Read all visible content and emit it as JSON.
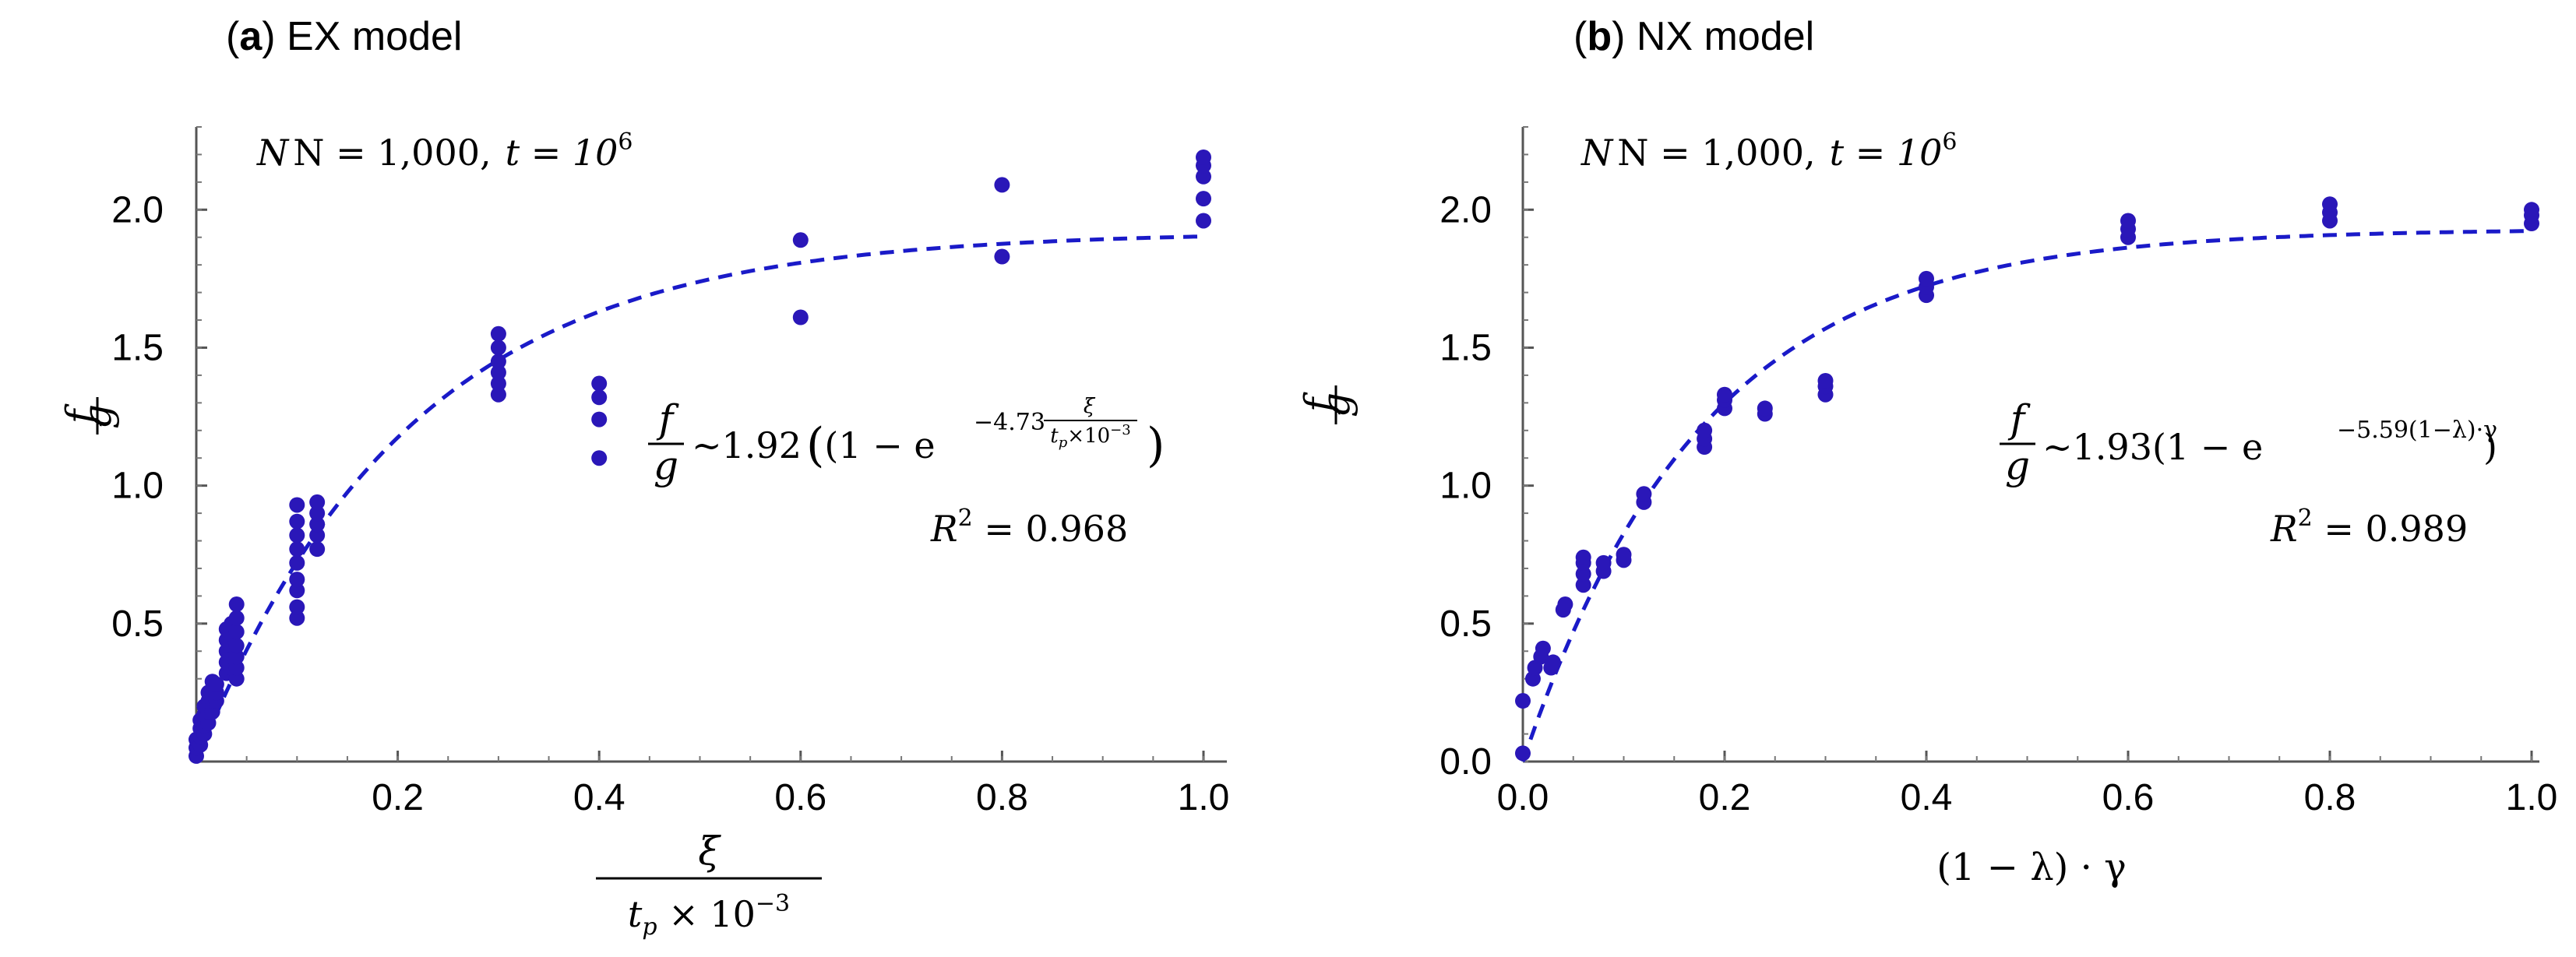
{
  "colors": {
    "points": "#2a17b8",
    "fit": "#1a1ac8"
  },
  "panels": [
    {
      "id": "a",
      "letter": "a",
      "title": " EX model",
      "annotation": {
        "N": "N = 1,000,",
        "t": "t = 10",
        "t_exp": "6"
      },
      "ylabel": {
        "num": "f",
        "den": "g"
      },
      "xlabel": {
        "num": "ξ",
        "den_base": "t",
        "den_sub": "p",
        "den_rest": " × 10",
        "den_exp": "−3"
      },
      "equation": {
        "lhs_num": "f",
        "lhs_den": "g",
        "rest": "~1.92",
        "open": "(1 − e",
        "exp_coef": "−4.73",
        "exp_frac_num": "ξ",
        "exp_frac_den": "t",
        "exp_frac_den_sub": "p",
        "exp_frac_den_rest": "×10",
        "exp_frac_den_exp": "−3",
        "close": ")"
      },
      "r2": {
        "label": "R",
        "exp": "2",
        "value": " = 0.968"
      }
    },
    {
      "id": "b",
      "letter": "b",
      "title": " NX model",
      "annotation": {
        "N": "N = 1,000,",
        "t": "t = 10",
        "t_exp": "6"
      },
      "ylabel": {
        "num": "f",
        "den": "g"
      },
      "xlabel": {
        "text": "(1 − λ) · γ"
      },
      "equation": {
        "lhs_num": "f",
        "lhs_den": "g",
        "rest": "~1.93",
        "open": "(1 − e",
        "exp": "−5.59(1−λ)·γ",
        "close": ")"
      },
      "r2": {
        "label": "R",
        "exp": "2",
        "value": " = 0.989"
      }
    }
  ],
  "chart_data": [
    {
      "type": "scatter",
      "title": "(a) EX model",
      "xlabel": "ξ / (t_p × 10^-3)",
      "ylabel": "f / g",
      "xlim": [
        0,
        1.0
      ],
      "ylim": [
        0,
        2.3
      ],
      "xticks": [
        {
          "value": 0.2,
          "label": "0.2"
        },
        {
          "value": 0.4,
          "label": "0.4"
        },
        {
          "value": 0.6,
          "label": "0.6"
        },
        {
          "value": 0.8,
          "label": "0.8"
        },
        {
          "value": 1.0,
          "label": "1.0"
        }
      ],
      "yticks": [
        {
          "value": 0.5,
          "label": "0.5"
        },
        {
          "value": 1.0,
          "label": "1.0"
        },
        {
          "value": 1.5,
          "label": "1.5"
        },
        {
          "value": 2.0,
          "label": "2.0"
        }
      ],
      "fit": {
        "a": 1.92,
        "b": 4.73,
        "label": "f/g ~ 1.92(1 − e^(−4.73 ξ/(t_p×10^-3)))"
      },
      "points": [
        [
          0.0,
          0.02
        ],
        [
          0.0,
          0.05
        ],
        [
          0.0,
          0.08
        ],
        [
          0.004,
          0.06
        ],
        [
          0.004,
          0.09
        ],
        [
          0.004,
          0.12
        ],
        [
          0.004,
          0.15
        ],
        [
          0.008,
          0.1
        ],
        [
          0.008,
          0.13
        ],
        [
          0.008,
          0.17
        ],
        [
          0.008,
          0.2
        ],
        [
          0.012,
          0.14
        ],
        [
          0.012,
          0.18
        ],
        [
          0.012,
          0.22
        ],
        [
          0.012,
          0.25
        ],
        [
          0.016,
          0.18
        ],
        [
          0.016,
          0.22
        ],
        [
          0.016,
          0.26
        ],
        [
          0.016,
          0.29
        ],
        [
          0.02,
          0.22
        ],
        [
          0.02,
          0.25
        ],
        [
          0.02,
          0.28
        ],
        [
          0.03,
          0.32
        ],
        [
          0.03,
          0.36
        ],
        [
          0.03,
          0.4
        ],
        [
          0.03,
          0.44
        ],
        [
          0.03,
          0.48
        ],
        [
          0.035,
          0.34
        ],
        [
          0.035,
          0.38
        ],
        [
          0.035,
          0.42
        ],
        [
          0.035,
          0.46
        ],
        [
          0.035,
          0.5
        ],
        [
          0.04,
          0.3
        ],
        [
          0.04,
          0.34
        ],
        [
          0.04,
          0.38
        ],
        [
          0.04,
          0.42
        ],
        [
          0.04,
          0.47
        ],
        [
          0.04,
          0.52
        ],
        [
          0.04,
          0.57
        ],
        [
          0.1,
          0.52
        ],
        [
          0.1,
          0.56
        ],
        [
          0.1,
          0.62
        ],
        [
          0.1,
          0.66
        ],
        [
          0.1,
          0.72
        ],
        [
          0.1,
          0.77
        ],
        [
          0.1,
          0.82
        ],
        [
          0.1,
          0.87
        ],
        [
          0.1,
          0.93
        ],
        [
          0.12,
          0.77
        ],
        [
          0.12,
          0.82
        ],
        [
          0.12,
          0.86
        ],
        [
          0.12,
          0.9
        ],
        [
          0.12,
          0.94
        ],
        [
          0.3,
          1.33
        ],
        [
          0.3,
          1.37
        ],
        [
          0.3,
          1.41
        ],
        [
          0.3,
          1.45
        ],
        [
          0.3,
          1.5
        ],
        [
          0.3,
          1.55
        ],
        [
          0.4,
          1.1
        ],
        [
          0.4,
          1.24
        ],
        [
          0.4,
          1.32
        ],
        [
          0.4,
          1.37
        ],
        [
          0.6,
          1.61
        ],
        [
          0.6,
          1.89
        ],
        [
          0.8,
          1.83
        ],
        [
          0.8,
          2.09
        ],
        [
          1.0,
          1.96
        ],
        [
          1.0,
          2.04
        ],
        [
          1.0,
          2.12
        ],
        [
          1.0,
          2.16
        ],
        [
          1.0,
          2.19
        ]
      ]
    },
    {
      "type": "scatter",
      "title": "(b) NX model",
      "xlabel": "(1 − λ) · γ",
      "ylabel": "f / g",
      "xlim": [
        0,
        1.0
      ],
      "ylim": [
        0,
        2.3
      ],
      "xticks": [
        {
          "value": 0.0,
          "label": "0.0"
        },
        {
          "value": 0.2,
          "label": "0.2"
        },
        {
          "value": 0.4,
          "label": "0.4"
        },
        {
          "value": 0.6,
          "label": "0.6"
        },
        {
          "value": 0.8,
          "label": "0.8"
        },
        {
          "value": 1.0,
          "label": "1.0"
        }
      ],
      "yticks": [
        {
          "value": 0.0,
          "label": "0.0"
        },
        {
          "value": 0.5,
          "label": "0.5"
        },
        {
          "value": 1.0,
          "label": "1.0"
        },
        {
          "value": 1.5,
          "label": "1.5"
        },
        {
          "value": 2.0,
          "label": "2.0"
        }
      ],
      "fit": {
        "a": 1.93,
        "b": 5.59,
        "label": "f/g ~ 1.93(1 − e^(−5.59(1−λ)·γ))"
      },
      "points": [
        [
          0.0,
          0.03
        ],
        [
          0.0,
          0.22
        ],
        [
          0.01,
          0.3
        ],
        [
          0.012,
          0.34
        ],
        [
          0.018,
          0.38
        ],
        [
          0.02,
          0.41
        ],
        [
          0.028,
          0.34
        ],
        [
          0.03,
          0.36
        ],
        [
          0.04,
          0.55
        ],
        [
          0.042,
          0.57
        ],
        [
          0.06,
          0.64
        ],
        [
          0.06,
          0.68
        ],
        [
          0.06,
          0.72
        ],
        [
          0.06,
          0.74
        ],
        [
          0.08,
          0.69
        ],
        [
          0.08,
          0.72
        ],
        [
          0.1,
          0.73
        ],
        [
          0.1,
          0.75
        ],
        [
          0.12,
          0.94
        ],
        [
          0.12,
          0.97
        ],
        [
          0.18,
          1.14
        ],
        [
          0.18,
          1.17
        ],
        [
          0.18,
          1.2
        ],
        [
          0.2,
          1.28
        ],
        [
          0.2,
          1.31
        ],
        [
          0.2,
          1.33
        ],
        [
          0.24,
          1.26
        ],
        [
          0.24,
          1.28
        ],
        [
          0.3,
          1.33
        ],
        [
          0.3,
          1.36
        ],
        [
          0.3,
          1.38
        ],
        [
          0.4,
          1.69
        ],
        [
          0.4,
          1.72
        ],
        [
          0.4,
          1.75
        ],
        [
          0.6,
          1.9
        ],
        [
          0.6,
          1.93
        ],
        [
          0.6,
          1.96
        ],
        [
          0.8,
          1.96
        ],
        [
          0.8,
          1.99
        ],
        [
          0.8,
          2.02
        ],
        [
          1.0,
          1.95
        ],
        [
          1.0,
          1.98
        ],
        [
          1.0,
          2.0
        ]
      ]
    }
  ]
}
